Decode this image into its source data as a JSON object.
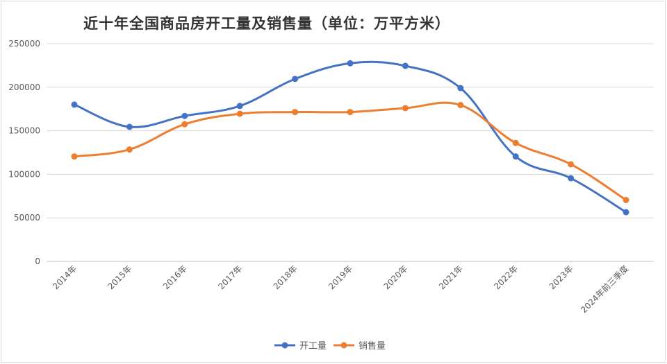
{
  "chart_data": {
    "type": "line",
    "title": "近十年全国商品房开工量及销售量（单位：万平方米）",
    "categories": [
      "2014年",
      "2015年",
      "2016年",
      "2017年",
      "2018年",
      "2019年",
      "2020年",
      "2021年",
      "2022年",
      "2023年",
      "2024年前三季度"
    ],
    "series": [
      {
        "name": "开工量",
        "color": "#4472c4",
        "values": [
          180000,
          154500,
          167000,
          178500,
          209500,
          227500,
          224500,
          199000,
          120500,
          95500,
          56500
        ]
      },
      {
        "name": "销售量",
        "color": "#ed7d31",
        "values": [
          120500,
          128500,
          157500,
          169500,
          171500,
          171500,
          176000,
          179500,
          136000,
          111500,
          70500
        ]
      }
    ],
    "yticks": [
      0,
      50000,
      100000,
      150000,
      200000,
      250000
    ],
    "ylim": [
      0,
      250000
    ],
    "xlabel": "",
    "ylabel": "",
    "grid": true,
    "legend": "bottom"
  }
}
